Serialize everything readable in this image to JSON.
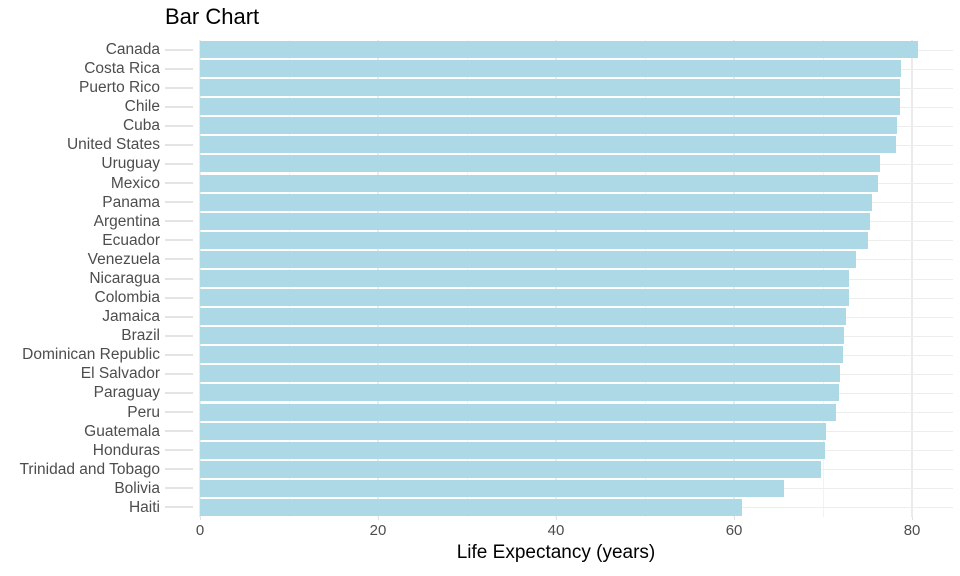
{
  "page": {
    "background_color": "#ffffff"
  },
  "chart_data": {
    "type": "bar",
    "orientation": "horizontal",
    "title": "Bar Chart",
    "xlabel": "Life Expectancy (years)",
    "ylabel": "",
    "categories": [
      "Canada",
      "Costa Rica",
      "Puerto Rico",
      "Chile",
      "Cuba",
      "United States",
      "Uruguay",
      "Mexico",
      "Panama",
      "Argentina",
      "Ecuador",
      "Venezuela",
      "Nicaragua",
      "Colombia",
      "Jamaica",
      "Brazil",
      "Dominican Republic",
      "El Salvador",
      "Paraguay",
      "Peru",
      "Guatemala",
      "Honduras",
      "Trinidad and Tobago",
      "Bolivia",
      "Haiti"
    ],
    "values": [
      80.7,
      78.8,
      78.7,
      78.6,
      78.3,
      78.2,
      76.4,
      76.2,
      75.5,
      75.3,
      75.0,
      73.7,
      72.9,
      72.9,
      72.6,
      72.4,
      72.2,
      71.9,
      71.8,
      71.4,
      70.3,
      70.2,
      69.8,
      65.6,
      60.9
    ],
    "x_major_ticks": [
      0,
      20,
      40,
      60,
      80
    ],
    "x_minor_ticks": [
      10,
      30,
      50,
      70
    ],
    "xlim": [
      0,
      84.6
    ],
    "grid": "vertical major+minor, horizontal per category",
    "legend": "none",
    "style": {
      "bar_color": "#ADD8E6",
      "grid_major_color": "#EBEBEB",
      "grid_minor_color": "#F2F2F2",
      "row_grid_color": "#EDEDED",
      "ytick_color": "#E4E4E4",
      "xtick_color": "#E0E0E0",
      "axis_text_color": "#4D4D4D",
      "title_color": "#000000"
    }
  }
}
